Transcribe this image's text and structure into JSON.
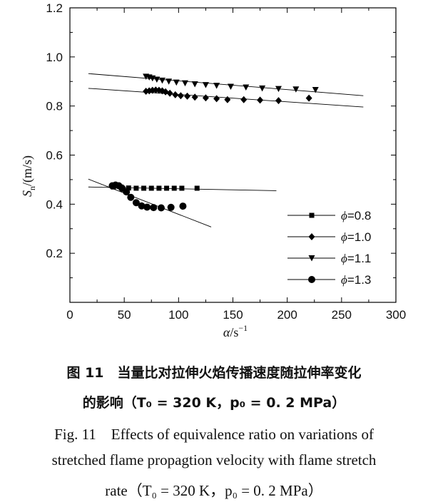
{
  "chart_data": {
    "type": "scatter",
    "xlabel_main": "α",
    "xlabel_unit": "/s",
    "xlabel_exp": "−1",
    "ylabel_main": "S",
    "ylabel_sub": "n",
    "ylabel_unit": "/(m/s)",
    "xlim": [
      0,
      300
    ],
    "ylim": [
      0,
      1.2
    ],
    "xticks": [
      "0",
      "50",
      "100",
      "150",
      "200",
      "250",
      "300"
    ],
    "yticks": [
      "0.2",
      "0.4",
      "0.6",
      "0.8",
      "1.0",
      "1.2"
    ],
    "legend_symbol": "ϕ",
    "series": [
      {
        "name": "=0.8",
        "marker": "square",
        "x": [
          40,
          47,
          54,
          61,
          68,
          75,
          82,
          89,
          96,
          103,
          117
        ],
        "y": [
          0.47,
          0.47,
          0.466,
          0.465,
          0.465,
          0.465,
          0.465,
          0.465,
          0.465,
          0.465,
          0.465
        ],
        "fit": [
          [
            17,
            0.47
          ],
          [
            190,
            0.455
          ]
        ]
      },
      {
        "name": "=1.0",
        "marker": "diamond",
        "x": [
          70,
          73,
          76,
          79,
          82,
          85,
          88,
          92,
          97,
          102,
          108,
          115,
          125,
          135,
          145,
          160,
          175,
          192,
          220
        ],
        "y": [
          0.86,
          0.862,
          0.864,
          0.865,
          0.864,
          0.862,
          0.858,
          0.852,
          0.846,
          0.842,
          0.84,
          0.836,
          0.833,
          0.83,
          0.826,
          0.826,
          0.824,
          0.822,
          0.832
        ],
        "fit": [
          [
            17,
            0.872
          ],
          [
            270,
            0.796
          ]
        ]
      },
      {
        "name": "=1.1",
        "marker": "triangle-down",
        "x": [
          70,
          73,
          76,
          80,
          85,
          91,
          98,
          106,
          115,
          125,
          135,
          148,
          162,
          177,
          192,
          208,
          226
        ],
        "y": [
          0.92,
          0.917,
          0.913,
          0.908,
          0.904,
          0.9,
          0.896,
          0.893,
          0.889,
          0.886,
          0.883,
          0.879,
          0.876,
          0.872,
          0.87,
          0.868,
          0.866
        ],
        "fit": [
          [
            17,
            0.932
          ],
          [
            270,
            0.842
          ]
        ]
      },
      {
        "name": "=1.3",
        "marker": "circle",
        "x": [
          39,
          42,
          45,
          48,
          52,
          56,
          61,
          66,
          71,
          77,
          84,
          93,
          104
        ],
        "y": [
          0.475,
          0.478,
          0.475,
          0.465,
          0.45,
          0.428,
          0.406,
          0.393,
          0.388,
          0.386,
          0.385,
          0.387,
          0.392
        ],
        "fit": [
          [
            17,
            0.502
          ],
          [
            130,
            0.307
          ]
        ]
      }
    ]
  },
  "caption": {
    "cn_line1": "图 11　当量比对拉伸火焰传播速度随拉伸率变化",
    "cn_line2": "的影响（T₀ = 320 K，p₀ = 0. 2 MPa）",
    "en_line1": "Fig. 11　Effects of equivalence ratio on variations of",
    "en_line2": "stretched flame propagtion velocity with flame stretch",
    "en_line3": "rate（T₀ = 320 K，p₀ = 0. 2 MPa）"
  }
}
